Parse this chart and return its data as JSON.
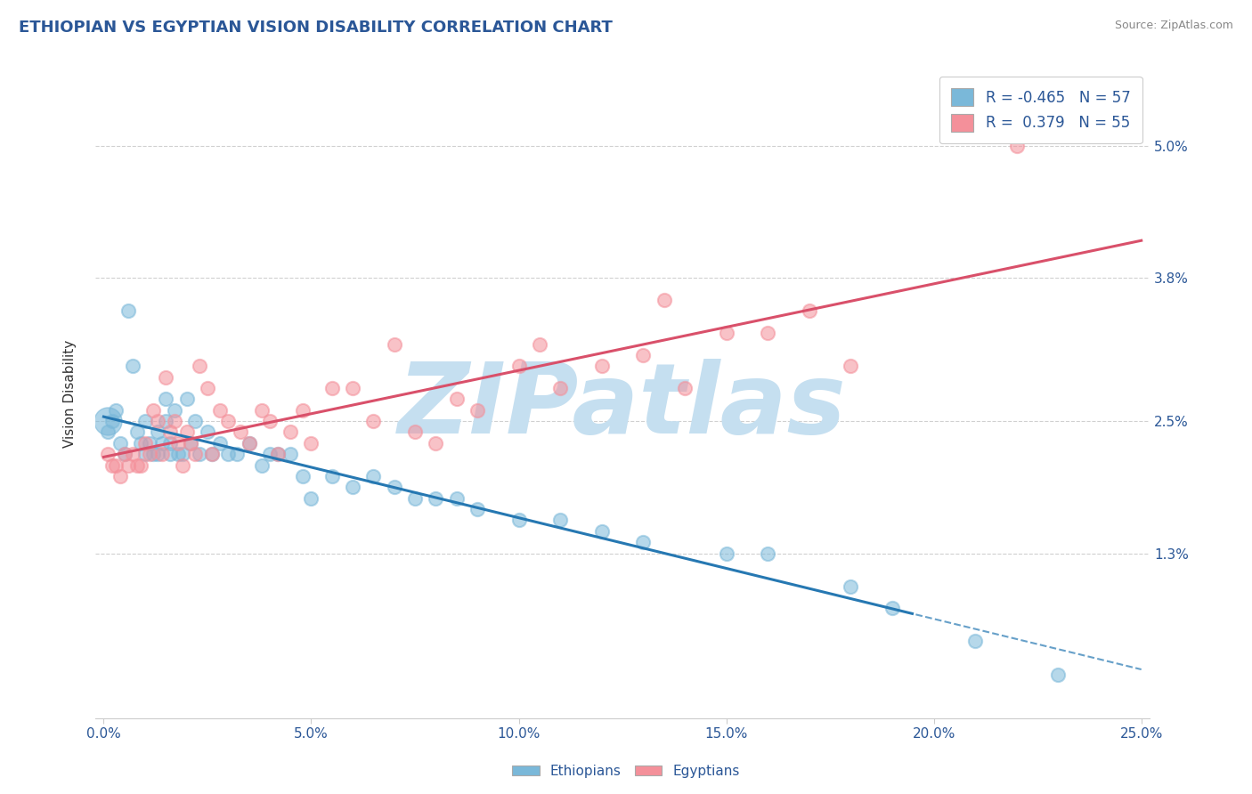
{
  "title": "ETHIOPIAN VS EGYPTIAN VISION DISABILITY CORRELATION CHART",
  "source": "Source: ZipAtlas.com",
  "ylabel": "Vision Disability",
  "xlim": [
    -0.002,
    0.252
  ],
  "ylim": [
    -0.002,
    0.057
  ],
  "xtick_labels": [
    "0.0%",
    "5.0%",
    "10.0%",
    "15.0%",
    "20.0%",
    "25.0%"
  ],
  "ytick_labels": [
    "1.3%",
    "2.5%",
    "3.8%",
    "5.0%"
  ],
  "ethiopian_color": "#7ab8d9",
  "egyptian_color": "#f4909a",
  "ethiopian_R": -0.465,
  "ethiopian_N": 57,
  "egyptian_R": 0.379,
  "egyptian_N": 55,
  "title_color": "#2b5797",
  "axis_color": "#2b5797",
  "label_color": "#333333",
  "watermark": "ZIPatlas",
  "watermark_color": "#c5dff0",
  "background_color": "#ffffff",
  "ethiopians_scatter_x": [
    0.001,
    0.002,
    0.003,
    0.004,
    0.005,
    0.006,
    0.007,
    0.008,
    0.009,
    0.01,
    0.01,
    0.011,
    0.012,
    0.013,
    0.013,
    0.014,
    0.015,
    0.015,
    0.016,
    0.016,
    0.017,
    0.018,
    0.019,
    0.02,
    0.021,
    0.022,
    0.023,
    0.025,
    0.026,
    0.028,
    0.03,
    0.032,
    0.035,
    0.038,
    0.04,
    0.042,
    0.045,
    0.048,
    0.05,
    0.055,
    0.06,
    0.065,
    0.07,
    0.075,
    0.08,
    0.085,
    0.09,
    0.1,
    0.11,
    0.12,
    0.13,
    0.15,
    0.16,
    0.18,
    0.19,
    0.21,
    0.23
  ],
  "ethiopians_scatter_y": [
    0.024,
    0.025,
    0.026,
    0.023,
    0.022,
    0.035,
    0.03,
    0.024,
    0.023,
    0.022,
    0.025,
    0.023,
    0.022,
    0.024,
    0.022,
    0.023,
    0.027,
    0.025,
    0.022,
    0.023,
    0.026,
    0.022,
    0.022,
    0.027,
    0.023,
    0.025,
    0.022,
    0.024,
    0.022,
    0.023,
    0.022,
    0.022,
    0.023,
    0.021,
    0.022,
    0.022,
    0.022,
    0.02,
    0.018,
    0.02,
    0.019,
    0.02,
    0.019,
    0.018,
    0.018,
    0.018,
    0.017,
    0.016,
    0.016,
    0.015,
    0.014,
    0.013,
    0.013,
    0.01,
    0.008,
    0.005,
    0.002
  ],
  "egyptians_scatter_x": [
    0.001,
    0.002,
    0.003,
    0.004,
    0.005,
    0.006,
    0.007,
    0.008,
    0.009,
    0.01,
    0.011,
    0.012,
    0.013,
    0.014,
    0.015,
    0.016,
    0.017,
    0.018,
    0.019,
    0.02,
    0.021,
    0.022,
    0.023,
    0.025,
    0.026,
    0.028,
    0.03,
    0.033,
    0.035,
    0.038,
    0.04,
    0.042,
    0.045,
    0.048,
    0.05,
    0.055,
    0.06,
    0.065,
    0.07,
    0.075,
    0.08,
    0.085,
    0.09,
    0.1,
    0.105,
    0.11,
    0.12,
    0.13,
    0.135,
    0.14,
    0.15,
    0.16,
    0.17,
    0.18,
    0.22
  ],
  "egyptians_scatter_y": [
    0.022,
    0.021,
    0.021,
    0.02,
    0.022,
    0.021,
    0.022,
    0.021,
    0.021,
    0.023,
    0.022,
    0.026,
    0.025,
    0.022,
    0.029,
    0.024,
    0.025,
    0.023,
    0.021,
    0.024,
    0.023,
    0.022,
    0.03,
    0.028,
    0.022,
    0.026,
    0.025,
    0.024,
    0.023,
    0.026,
    0.025,
    0.022,
    0.024,
    0.026,
    0.023,
    0.028,
    0.028,
    0.025,
    0.032,
    0.024,
    0.023,
    0.027,
    0.026,
    0.03,
    0.032,
    0.028,
    0.03,
    0.031,
    0.036,
    0.028,
    0.033,
    0.033,
    0.035,
    0.03,
    0.05
  ]
}
